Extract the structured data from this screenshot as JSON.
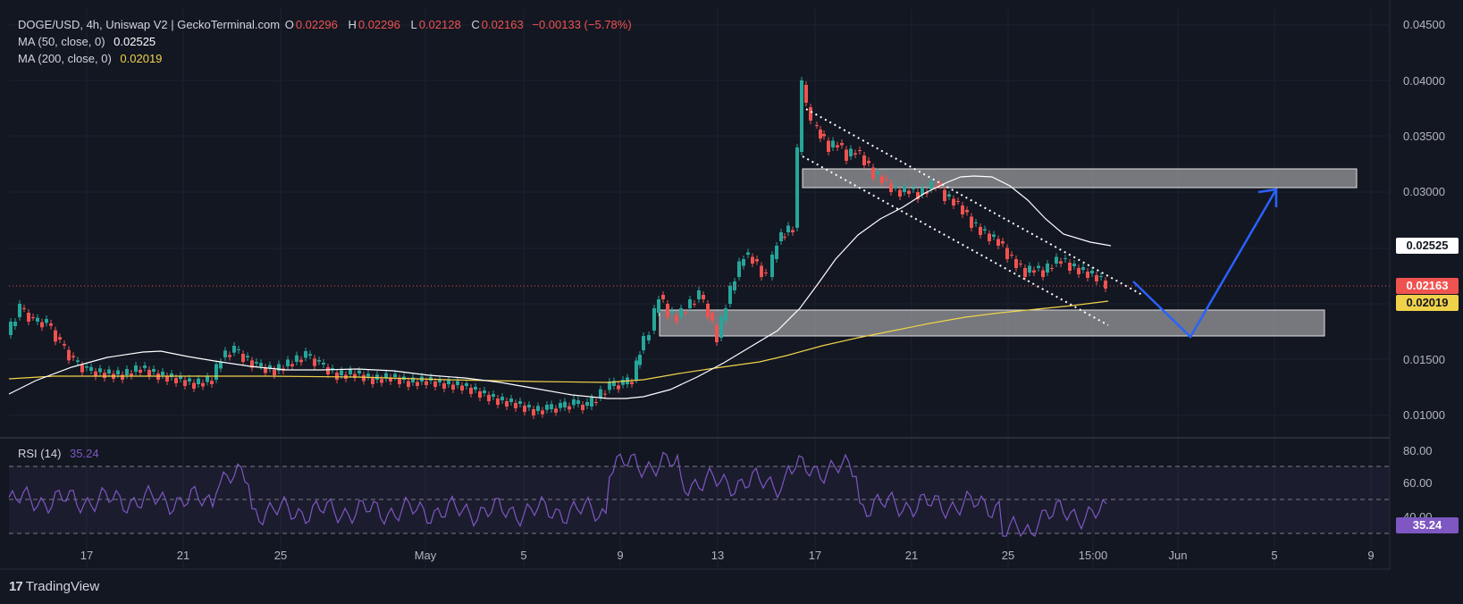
{
  "header": {
    "symbol": "DOGE/USD, 4h, Uniswap V2 | GeckoTerminal.com",
    "o_label": "O",
    "o_value": "0.02296",
    "h_label": "H",
    "h_value": "0.02296",
    "l_label": "L",
    "l_value": "0.02128",
    "c_label": "C",
    "c_value": "0.02163",
    "change": "−0.00133 (−5.78%)",
    "ma50_label": "MA (50, close, 0)",
    "ma50_value": "0.02525",
    "ma200_label": "MA (200, close, 0)",
    "ma200_value": "0.02019"
  },
  "price_axis": {
    "ticks": [
      "0.04500",
      "0.04000",
      "0.03500",
      "0.03000",
      "0.01500",
      "0.01000"
    ],
    "tick_values": [
      0.045,
      0.04,
      0.035,
      0.03,
      0.015,
      0.01
    ],
    "ma50_badge": "0.02525",
    "close_badge": "0.02163",
    "ma200_badge": "0.02019"
  },
  "rsi": {
    "label": "RSI (14)",
    "value": "35.24",
    "ticks": [
      "80.00",
      "60.00",
      "40.00"
    ],
    "badge": "35.24"
  },
  "time_axis": {
    "labels": [
      "17",
      "21",
      "25",
      "May",
      "5",
      "9",
      "13",
      "17",
      "21",
      "25",
      "15:00",
      "Jun",
      "5",
      "9"
    ]
  },
  "brand": {
    "logo": "17",
    "name": "TradingView"
  },
  "colors": {
    "background": "#131722",
    "up": "#26a69a",
    "down": "#ef5350",
    "ma50": "#ffffff",
    "ma200": "#f0d24a",
    "rsi": "#7e57c2",
    "projection": "#2962ff"
  }
}
